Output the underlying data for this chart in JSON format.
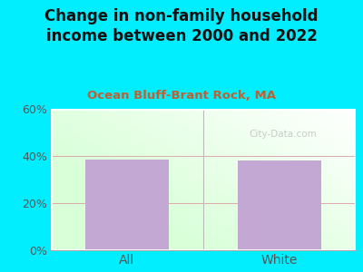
{
  "title": "Change in non-family household\nincome between 2000 and 2022",
  "subtitle": "Ocean Bluff-Brant Rock, MA",
  "categories": [
    "All",
    "White"
  ],
  "values": [
    38.5,
    38.0
  ],
  "bar_color": "#c4a8d4",
  "ylim": [
    0,
    60
  ],
  "yticks": [
    0,
    20,
    40,
    60
  ],
  "ytick_labels": [
    "0%",
    "20%",
    "40%",
    "60%"
  ],
  "bg_outer": "#00eeff",
  "title_fontsize": 12,
  "subtitle_fontsize": 9.5,
  "subtitle_color": "#c06030",
  "watermark": "City-Data.com",
  "tick_color": "#555555",
  "grid_color": "#ddaaaa",
  "divider_color": "#bbbbbb"
}
